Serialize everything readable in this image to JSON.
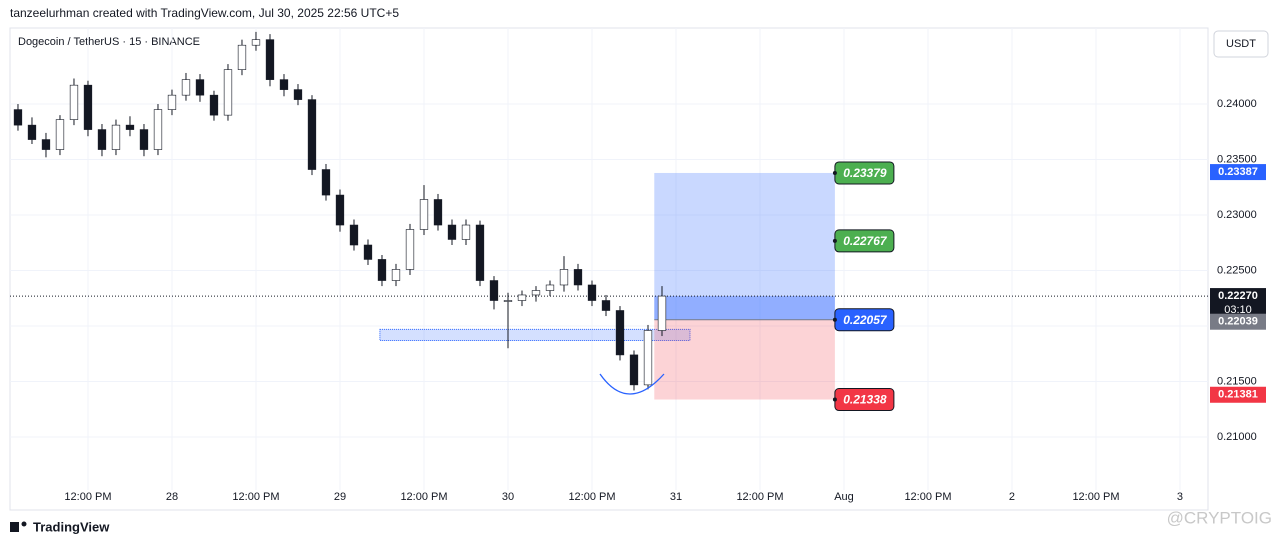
{
  "chart_data": {
    "type": "candlestick",
    "header": "tanzeelurhman created with TradingView.com, Jul 30, 2025 22:56 UTC+5",
    "title": "Dogecoin / TetherUS · 15 · BINANCE",
    "currency_button": "USDT",
    "brand": "TradingView",
    "watermark": "@CRYPTOIG",
    "up_color": "#089981",
    "down_color": "#f23645",
    "grid": true,
    "xlim": [
      -23.14,
      148
    ],
    "ylim": [
      0.20523,
      0.24685
    ],
    "xticks": [
      {
        "value": -12,
        "label": "12:00 PM"
      },
      {
        "value": 0,
        "label": "28"
      },
      {
        "value": 12,
        "label": "12:00 PM"
      },
      {
        "value": 24,
        "label": "29"
      },
      {
        "value": 36,
        "label": "12:00 PM"
      },
      {
        "value": 48,
        "label": "30"
      },
      {
        "value": 60,
        "label": "12:00 PM"
      },
      {
        "value": 72,
        "label": "31"
      },
      {
        "value": 84,
        "label": "12:00 PM"
      },
      {
        "value": 96,
        "label": "Aug"
      },
      {
        "value": 108,
        "label": "12:00 PM"
      },
      {
        "value": 120,
        "label": "2"
      },
      {
        "value": 132,
        "label": "12:00 PM"
      },
      {
        "value": 144,
        "label": "3"
      }
    ],
    "yticks": [
      {
        "value": 0.21,
        "label": "0.21000"
      },
      {
        "value": 0.215,
        "label": "0.21500"
      },
      {
        "value": 0.22,
        "label": "0.22000"
      },
      {
        "value": 0.225,
        "label": "0.22500"
      },
      {
        "value": 0.23,
        "label": "0.23000"
      },
      {
        "value": 0.235,
        "label": "0.23500"
      },
      {
        "value": 0.24,
        "label": "0.24000"
      }
    ],
    "x": [
      -22,
      -20,
      -18,
      -16,
      -14,
      -12,
      -10,
      -8,
      -6,
      -4,
      -2,
      0,
      2,
      4,
      6,
      8,
      10,
      12,
      14,
      16,
      18,
      20,
      22,
      24,
      26,
      28,
      30,
      32,
      34,
      36,
      38,
      40,
      42,
      44,
      46,
      48,
      50,
      52,
      54,
      56,
      58,
      60,
      62,
      64,
      66,
      68,
      70
    ],
    "open": [
      0.2395,
      0.2381,
      0.2368,
      0.2359,
      0.2386,
      0.2417,
      0.2377,
      0.2359,
      0.2381,
      0.2377,
      0.2359,
      0.2395,
      0.2408,
      0.2422,
      0.2408,
      0.239,
      0.2431,
      0.2453,
      0.2458,
      0.2422,
      0.2413,
      0.2404,
      0.2341,
      0.2318,
      0.2291,
      0.2273,
      0.226,
      0.2241,
      0.2251,
      0.2287,
      0.2314,
      0.2291,
      0.2278,
      0.2291,
      0.2241,
      0.2223,
      0.2223,
      0.2228,
      0.2232,
      0.2237,
      0.2251,
      0.2237,
      0.2223,
      0.2214,
      0.2174,
      0.2147,
      0.2196
    ],
    "high": [
      0.24,
      0.2388,
      0.2374,
      0.239,
      0.2423,
      0.2421,
      0.2382,
      0.2386,
      0.2389,
      0.2382,
      0.24,
      0.2413,
      0.2428,
      0.2427,
      0.2412,
      0.2436,
      0.2458,
      0.2465,
      0.2463,
      0.2427,
      0.2418,
      0.2408,
      0.2346,
      0.2323,
      0.2296,
      0.2278,
      0.2264,
      0.2256,
      0.2292,
      0.2327,
      0.2319,
      0.2296,
      0.2296,
      0.2295,
      0.2245,
      0.223,
      0.2232,
      0.2236,
      0.2241,
      0.2263,
      0.2256,
      0.2241,
      0.2228,
      0.2218,
      0.2178,
      0.2201,
      0.2236
    ],
    "low": [
      0.2376,
      0.2364,
      0.2352,
      0.2354,
      0.2381,
      0.2371,
      0.2353,
      0.2354,
      0.2371,
      0.2353,
      0.2354,
      0.239,
      0.2403,
      0.2402,
      0.2385,
      0.2385,
      0.2426,
      0.2448,
      0.2416,
      0.2407,
      0.2399,
      0.2336,
      0.2313,
      0.2285,
      0.2268,
      0.2255,
      0.2236,
      0.2236,
      0.2246,
      0.2282,
      0.2286,
      0.2273,
      0.2273,
      0.2236,
      0.2215,
      0.218,
      0.2218,
      0.2222,
      0.2227,
      0.2231,
      0.2232,
      0.2218,
      0.2209,
      0.2169,
      0.2142,
      0.2143,
      0.2191
    ],
    "close": [
      0.2381,
      0.2368,
      0.2359,
      0.2386,
      0.2417,
      0.2377,
      0.2359,
      0.2381,
      0.2377,
      0.2359,
      0.2395,
      0.2408,
      0.2422,
      0.2408,
      0.239,
      0.2431,
      0.2453,
      0.2458,
      0.2422,
      0.2413,
      0.2404,
      0.2341,
      0.2318,
      0.2291,
      0.2273,
      0.226,
      0.2241,
      0.2251,
      0.2287,
      0.2314,
      0.2291,
      0.2278,
      0.2291,
      0.2241,
      0.2223,
      0.2223,
      0.2228,
      0.2232,
      0.2237,
      0.2251,
      0.2237,
      0.2223,
      0.2214,
      0.2174,
      0.2147,
      0.2196,
      0.2227
    ],
    "support_zone": {
      "x_start": 29.7,
      "x_end": 74,
      "top": 0.2197,
      "bottom": 0.2187
    },
    "position": {
      "x_start": 68.9,
      "x_end": 94.7,
      "target": 0.23379,
      "take_profit": 0.22767,
      "entry": 0.22057,
      "stop": 0.21338
    },
    "price_tags": [
      {
        "value": 0.23387,
        "label": "0.23387",
        "color": "#2962ff"
      },
      {
        "value": 0.2227,
        "label": "0.22270",
        "color": "#131722",
        "countdown": "03:10"
      },
      {
        "value": 0.22039,
        "label": "0.22039",
        "color": "#787b86"
      },
      {
        "value": 0.21381,
        "label": "0.21381",
        "color": "#f23645"
      }
    ]
  }
}
